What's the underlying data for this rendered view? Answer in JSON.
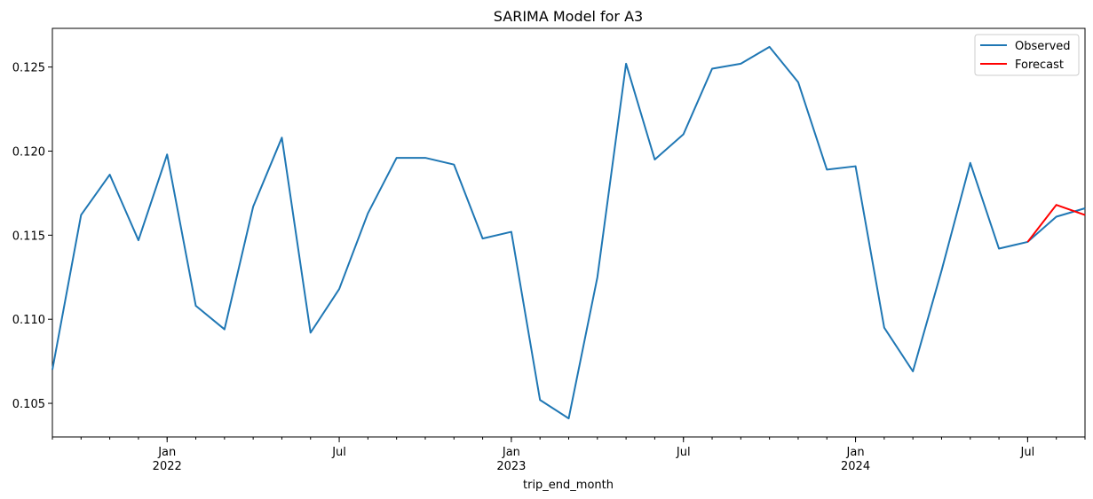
{
  "chart_data": {
    "type": "line",
    "title": "SARIMA Model for A3",
    "xlabel": "trip_end_month",
    "ylabel": "",
    "ylim": [
      0.103,
      0.1273
    ],
    "grid": false,
    "legend": {
      "placement": "top-right",
      "entries": [
        "Observed",
        "Forecast"
      ]
    },
    "x_start_month": "2021-09",
    "x_end_month": "2024-09",
    "y_ticks": [
      "0.105",
      "0.110",
      "0.115",
      "0.120",
      "0.125"
    ],
    "x_tick_labels": [
      {
        "month": "2022-01",
        "lines": [
          "Jan",
          "2022"
        ]
      },
      {
        "month": "2022-07",
        "lines": [
          "Jul"
        ]
      },
      {
        "month": "2023-01",
        "lines": [
          "Jan",
          "2023"
        ]
      },
      {
        "month": "2023-07",
        "lines": [
          "Jul"
        ]
      },
      {
        "month": "2024-01",
        "lines": [
          "Jan",
          "2024"
        ]
      },
      {
        "month": "2024-07",
        "lines": [
          "Jul"
        ]
      }
    ],
    "series": [
      {
        "name": "Observed",
        "color": "#1f77b4",
        "x": [
          "2021-09",
          "2021-10",
          "2021-11",
          "2021-12",
          "2022-01",
          "2022-02",
          "2022-03",
          "2022-04",
          "2022-05",
          "2022-06",
          "2022-07",
          "2022-08",
          "2022-09",
          "2022-10",
          "2022-11",
          "2022-12",
          "2023-01",
          "2023-02",
          "2023-03",
          "2023-04",
          "2023-05",
          "2023-06",
          "2023-07",
          "2023-08",
          "2023-09",
          "2023-10",
          "2023-11",
          "2023-12",
          "2024-01",
          "2024-02",
          "2024-03",
          "2024-04",
          "2024-05",
          "2024-06",
          "2024-07",
          "2024-08",
          "2024-09"
        ],
        "values": [
          0.107,
          0.1162,
          0.1186,
          0.1147,
          0.1198,
          0.1108,
          0.1094,
          0.1167,
          0.1208,
          0.1092,
          0.1118,
          0.1163,
          0.1196,
          0.1196,
          0.1192,
          0.1148,
          0.1152,
          0.1052,
          0.1041,
          0.1125,
          0.1252,
          0.1195,
          0.121,
          0.1249,
          0.1252,
          0.1262,
          0.1241,
          0.1189,
          0.1191,
          0.1095,
          0.1069,
          0.1129,
          0.1193,
          0.1142,
          0.1146,
          0.1161,
          0.1166
        ]
      },
      {
        "name": "Forecast",
        "color": "#ff0000",
        "x": [
          "2024-07",
          "2024-08",
          "2024-09"
        ],
        "values": [
          0.1146,
          0.1168,
          0.1162
        ]
      }
    ]
  }
}
